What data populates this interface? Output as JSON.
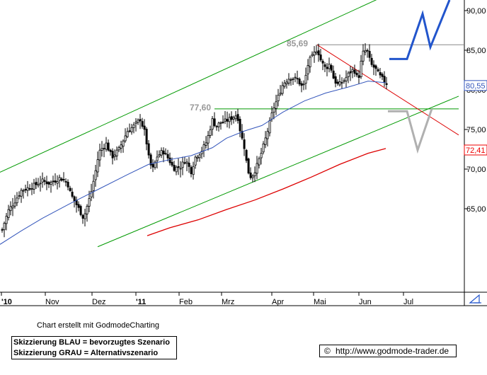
{
  "chart_data": {
    "type": "candlestick",
    "x_ticks": [
      "'10",
      "Nov",
      "Dez",
      "'11",
      "Feb",
      "Mrz",
      "Apr",
      "Mai",
      "Jun",
      "Jul"
    ],
    "y_ticks": [
      "90,00",
      "85,00",
      "80,00",
      "75,00",
      "70,00",
      "65,00"
    ],
    "ylim": [
      60,
      91.5
    ],
    "y_scale_side": "right",
    "grid": false,
    "annotations": [
      {
        "text": "85,69",
        "value": 85.69
      },
      {
        "text": "77,60",
        "value": 77.6
      }
    ],
    "price_labels": [
      {
        "text": "80,55",
        "value": 80.55,
        "color": "#3355bb"
      },
      {
        "text": "72,41",
        "value": 72.41,
        "color": "#ee0000"
      }
    ],
    "close_path": [
      [
        0,
        61.5
      ],
      [
        6,
        63.2
      ],
      [
        12,
        64.8
      ],
      [
        20,
        65.8
      ],
      [
        30,
        67.3
      ],
      [
        45,
        67.8
      ],
      [
        60,
        68.5
      ],
      [
        70,
        68.2
      ],
      [
        85,
        68.9
      ],
      [
        95,
        68.3
      ],
      [
        100,
        66.8
      ],
      [
        110,
        65.2
      ],
      [
        118,
        63.8
      ],
      [
        128,
        66.8
      ],
      [
        134,
        69.3
      ],
      [
        140,
        72.2
      ],
      [
        150,
        73.2
      ],
      [
        158,
        71.5
      ],
      [
        168,
        72.5
      ],
      [
        180,
        74.8
      ],
      [
        190,
        75.5
      ],
      [
        198,
        76.3
      ],
      [
        205,
        74.5
      ],
      [
        210,
        71.5
      ],
      [
        215,
        69.8
      ],
      [
        222,
        71.6
      ],
      [
        230,
        72.3
      ],
      [
        238,
        71.3
      ],
      [
        245,
        70.1
      ],
      [
        255,
        70.3
      ],
      [
        262,
        71.2
      ],
      [
        270,
        69.7
      ],
      [
        276,
        71.5
      ],
      [
        284,
        72.2
      ],
      [
        292,
        73.5
      ],
      [
        300,
        76.2
      ],
      [
        305,
        75.4
      ],
      [
        312,
        75.9
      ],
      [
        320,
        76.1
      ],
      [
        328,
        76.5
      ],
      [
        335,
        76.9
      ],
      [
        340,
        74.5
      ],
      [
        345,
        72.8
      ],
      [
        350,
        69.8
      ],
      [
        355,
        68.9
      ],
      [
        362,
        70.2
      ],
      [
        368,
        71.7
      ],
      [
        374,
        73.5
      ],
      [
        380,
        75.5
      ],
      [
        386,
        77.6
      ],
      [
        392,
        78.9
      ],
      [
        400,
        80.8
      ],
      [
        410,
        81.6
      ],
      [
        420,
        81.3
      ],
      [
        428,
        80.2
      ],
      [
        432,
        81.8
      ],
      [
        436,
        83.6
      ],
      [
        442,
        84.3
      ],
      [
        448,
        85.2
      ],
      [
        454,
        83.5
      ],
      [
        460,
        82.7
      ],
      [
        466,
        83.3
      ],
      [
        472,
        81.2
      ],
      [
        478,
        80.6
      ],
      [
        486,
        81.2
      ],
      [
        494,
        82.2
      ],
      [
        500,
        82.6
      ],
      [
        506,
        81.2
      ],
      [
        512,
        84.6
      ],
      [
        518,
        85.1
      ],
      [
        524,
        83.2
      ],
      [
        530,
        82.7
      ],
      [
        536,
        81.8
      ],
      [
        542,
        81.2
      ],
      [
        548,
        80.6
      ]
    ],
    "moving_average_blue": [
      [
        0,
        60.5
      ],
      [
        30,
        62.2
      ],
      [
        60,
        63.8
      ],
      [
        100,
        65.7
      ],
      [
        140,
        67.5
      ],
      [
        180,
        69.3
      ],
      [
        210,
        70.6
      ],
      [
        240,
        71.2
      ],
      [
        270,
        71.7
      ],
      [
        300,
        72.7
      ],
      [
        320,
        73.9
      ],
      [
        345,
        74.8
      ],
      [
        370,
        75.5
      ],
      [
        400,
        77.2
      ],
      [
        430,
        78.6
      ],
      [
        460,
        79.6
      ],
      [
        490,
        80.3
      ],
      [
        520,
        81.1
      ],
      [
        545,
        80.9
      ]
    ],
    "moving_average_red": [
      [
        208,
        61.6
      ],
      [
        240,
        62.6
      ],
      [
        280,
        63.6
      ],
      [
        320,
        64.9
      ],
      [
        360,
        66.1
      ],
      [
        400,
        67.5
      ],
      [
        440,
        69.0
      ],
      [
        480,
        70.6
      ],
      [
        520,
        72.0
      ],
      [
        545,
        72.6
      ]
    ],
    "trend_channel_upper": {
      "from": [
        0,
        69.6
      ],
      "to": [
        535,
        91.5
      ]
    },
    "trend_channel_lower": {
      "from": [
        138,
        60.2
      ],
      "to": [
        648,
        79.2
      ]
    },
    "resistance_line": {
      "from": [
        448,
        85.69
      ],
      "to": [
        655,
        85.69
      ]
    },
    "support_line": {
      "from": [
        303,
        77.6
      ],
      "to": [
        648,
        77.6
      ]
    },
    "falling_line": {
      "from": [
        448,
        85.69
      ],
      "to": [
        648,
        74.3
      ]
    },
    "scenario_blue": [
      [
        550,
        83.9
      ],
      [
        575,
        83.9
      ],
      [
        597,
        89.6
      ],
      [
        608,
        85.4
      ],
      [
        635,
        91.5
      ]
    ],
    "scenario_grey": [
      [
        548,
        77.3
      ],
      [
        575,
        77.3
      ],
      [
        590,
        72.4
      ],
      [
        610,
        77.6
      ]
    ]
  },
  "credit": "Chart erstellt mit GodmodeCharting",
  "legend": {
    "line1": "Skizzierung BLAU = bevorzugtes Szenario",
    "line2": "Skizzierung GRAU = Alternativszenario"
  },
  "footer": {
    "copyright": "©",
    "url": "http://www.godmode-trader.de"
  },
  "colors": {
    "candle": "#000000",
    "channel": "#009900",
    "support": "#009900",
    "resistance": "#888888",
    "falling": "#dd0000",
    "ma_blue": "#3355bb",
    "ma_red": "#dd0000",
    "scenario_blue": "#2255cc",
    "scenario_grey": "#b0b0b0",
    "annotation": "#999999"
  },
  "scroll_icon": "scroll-arrow-icon"
}
